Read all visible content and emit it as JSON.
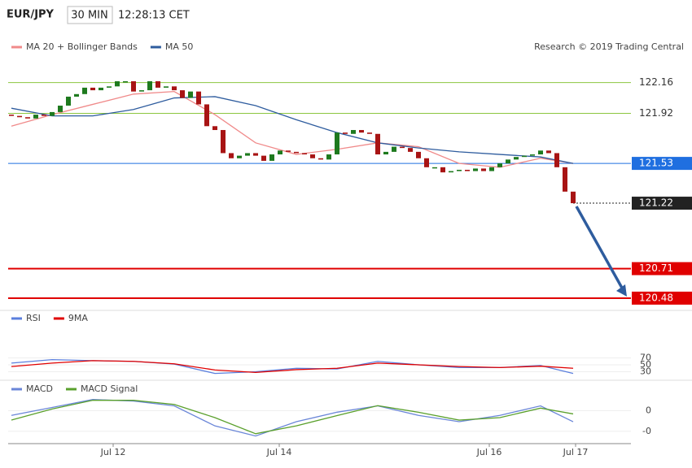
{
  "header": {
    "symbol": "EUR/JPY",
    "timeframe": "30 MIN",
    "time": "12:28:13 CET"
  },
  "chart_data": [
    {
      "type": "candlestick",
      "credit": "Research © 2019 Trading Central",
      "xlim": [
        -0.4,
        76.1
      ],
      "ylim": [
        120.41,
        122.36
      ],
      "up_color": "#1e7a1e",
      "down_color": "#a81414",
      "first_open": 121.91,
      "close": [
        121.9,
        121.89,
        121.88,
        121.91,
        121.9,
        121.93,
        121.98,
        122.05,
        122.07,
        122.12,
        122.1,
        122.12,
        122.13,
        122.17,
        122.17,
        122.09,
        122.1,
        122.17,
        122.12,
        122.13,
        122.1,
        122.04,
        122.09,
        121.99,
        121.82,
        121.79,
        121.61,
        121.57,
        121.59,
        121.61,
        121.59,
        121.55,
        121.6,
        121.63,
        121.62,
        121.61,
        121.6,
        121.57,
        121.56,
        121.6,
        121.77,
        121.76,
        121.79,
        121.77,
        121.76,
        121.6,
        121.62,
        121.66,
        121.65,
        121.62,
        121.57,
        121.5,
        121.5,
        121.46,
        121.47,
        121.48,
        121.47,
        121.49,
        121.47,
        121.5,
        121.53,
        121.56,
        121.58,
        121.59,
        121.6,
        121.63,
        121.61,
        121.5,
        121.31,
        121.22
      ],
      "series": [
        {
          "name": "MA 20 + Bollinger Bands",
          "color": "#f08a8a",
          "x": [
            0,
            5,
            10,
            15,
            20,
            25,
            30,
            35,
            40,
            45,
            50,
            55,
            60,
            65,
            69
          ],
          "values": [
            121.82,
            121.91,
            121.99,
            122.07,
            122.09,
            121.91,
            121.69,
            121.6,
            121.64,
            121.69,
            121.66,
            121.53,
            121.5,
            121.57,
            121.53
          ]
        },
        {
          "name": "MA 50",
          "color": "#2e5c9e",
          "x": [
            0,
            5,
            10,
            15,
            20,
            25,
            30,
            35,
            40,
            45,
            50,
            55,
            60,
            65,
            69
          ],
          "values": [
            121.96,
            121.9,
            121.9,
            121.95,
            122.04,
            122.05,
            121.98,
            121.87,
            121.77,
            121.69,
            121.65,
            121.62,
            121.6,
            121.58,
            121.53
          ]
        }
      ],
      "levels": [
        {
          "value": 122.16,
          "color": "#8cc63f",
          "style": "plain"
        },
        {
          "value": 121.92,
          "color": "#8cc63f",
          "style": "plain"
        },
        {
          "value": 121.53,
          "color": "#1f6fe0",
          "style": "box"
        },
        {
          "value": 121.22,
          "color": "#222222",
          "style": "box",
          "line": "dotted"
        },
        {
          "value": 120.71,
          "color": "#e00000",
          "style": "box"
        },
        {
          "value": 120.48,
          "color": "#e00000",
          "style": "box"
        }
      ],
      "arrow": {
        "to": 120.48,
        "color": "#2e5c9e"
      }
    },
    {
      "type": "line",
      "xlim": [
        -0.4,
        76.1
      ],
      "ylim": [
        10,
        90
      ],
      "yticks": [
        70,
        50,
        30
      ],
      "series": [
        {
          "name": "RSI",
          "color": "#5b7fde",
          "x": [
            0,
            5,
            10,
            15,
            20,
            25,
            30,
            35,
            40,
            45,
            50,
            55,
            60,
            65,
            69
          ],
          "values": [
            55,
            65,
            62,
            60,
            52,
            25,
            30,
            40,
            38,
            60,
            50,
            42,
            42,
            48,
            25
          ]
        },
        {
          "name": "9MA",
          "color": "#e00000",
          "x": [
            0,
            5,
            10,
            15,
            20,
            25,
            30,
            35,
            40,
            45,
            50,
            55,
            60,
            65,
            69
          ],
          "values": [
            45,
            55,
            62,
            60,
            53,
            35,
            28,
            36,
            40,
            55,
            50,
            45,
            42,
            46,
            40
          ]
        }
      ]
    },
    {
      "type": "line",
      "xlim": [
        -0.4,
        76.1
      ],
      "ylim": [
        -0.0008,
        0.00046
      ],
      "yticks": [
        {
          "value": 0,
          "label": "0"
        },
        {
          "value": -0.0005,
          "label": "-0"
        }
      ],
      "xticks": [
        {
          "value": 12.5,
          "label": "Jul 12"
        },
        {
          "value": 32.9,
          "label": "Jul 14"
        },
        {
          "value": 58.7,
          "label": "Jul 16"
        },
        {
          "value": 69.3,
          "label": "Jul 17"
        }
      ],
      "series": [
        {
          "name": "MACD",
          "color": "#6a86d8",
          "x": [
            0,
            5,
            10,
            15,
            20,
            25,
            30,
            35,
            40,
            45,
            50,
            55,
            60,
            65,
            69
          ],
          "values": [
            -0.000115,
            7.7e-05,
            0.000269,
            0.000231,
            0.000115,
            -0.00037,
            -0.000615,
            -0.000269,
            -3.8e-05,
            0.000115,
            -0.000115,
            -0.000269,
            -0.000115,
            0.000115,
            -0.000269
          ]
        },
        {
          "name": "MACD Signal",
          "color": "#5aa02c",
          "x": [
            0,
            5,
            10,
            15,
            20,
            25,
            30,
            35,
            40,
            45,
            50,
            55,
            60,
            65,
            69
          ],
          "values": [
            -0.00023,
            4e-05,
            0.00025,
            0.00025,
            0.00015,
            -0.00017,
            -0.00056,
            -0.00037,
            -0.00012,
            0.00012,
            -4e-05,
            -0.00023,
            -0.00017,
            6e-05,
            -8e-05
          ]
        }
      ]
    }
  ]
}
